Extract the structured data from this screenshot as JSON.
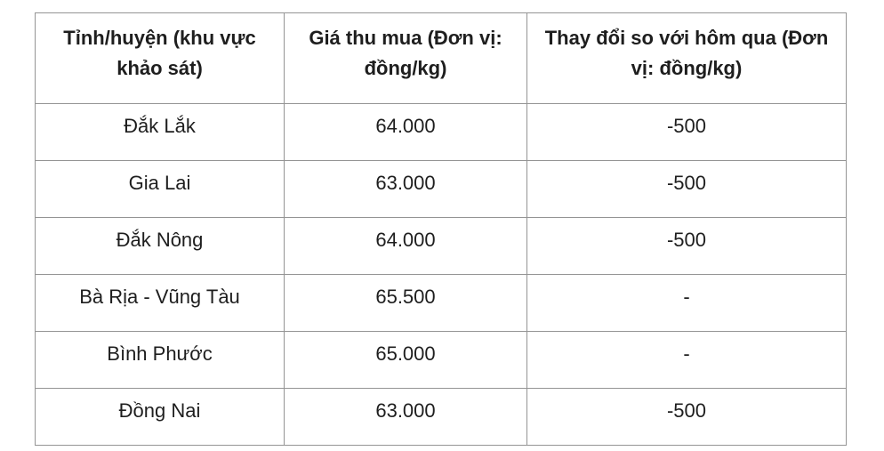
{
  "chart_data": {
    "type": "table",
    "columns": [
      "Tỉnh/huyện (khu vực khảo sát)",
      "Giá thu mua (Đơn vị: đồng/kg)",
      "Thay đổi so với hôm qua (Đơn vị: đồng/kg)"
    ],
    "rows": [
      [
        "Đắk Lắk",
        "64.000",
        "-500"
      ],
      [
        "Gia Lai",
        "63.000",
        "-500"
      ],
      [
        "Đắk Nông",
        "64.000",
        "-500"
      ],
      [
        "Bà Rịa - Vũng Tàu",
        "65.500",
        "-"
      ],
      [
        "Bình Phước",
        "65.000",
        "-"
      ],
      [
        "Đồng Nai",
        "63.000",
        "-500"
      ]
    ]
  },
  "table": {
    "headers": {
      "region": "Tỉnh/huyện (khu vực khảo sát)",
      "price": "Giá thu mua (Đơn vị: đồng/kg)",
      "change": "Thay đổi so với hôm qua (Đơn vị: đồng/kg)"
    },
    "rows": [
      {
        "region": "Đắk Lắk",
        "price": "64.000",
        "change": "-500"
      },
      {
        "region": "Gia Lai",
        "price": "63.000",
        "change": "-500"
      },
      {
        "region": "Đắk Nông",
        "price": "64.000",
        "change": "-500"
      },
      {
        "region": "Bà Rịa - Vũng Tàu",
        "price": "65.500",
        "change": "-"
      },
      {
        "region": "Bình Phước",
        "price": "65.000",
        "change": "-"
      },
      {
        "region": "Đồng Nai",
        "price": "63.000",
        "change": "-500"
      }
    ],
    "colors": {
      "border": "#949494",
      "text": "#1e1e1e",
      "background": "#ffffff"
    }
  }
}
